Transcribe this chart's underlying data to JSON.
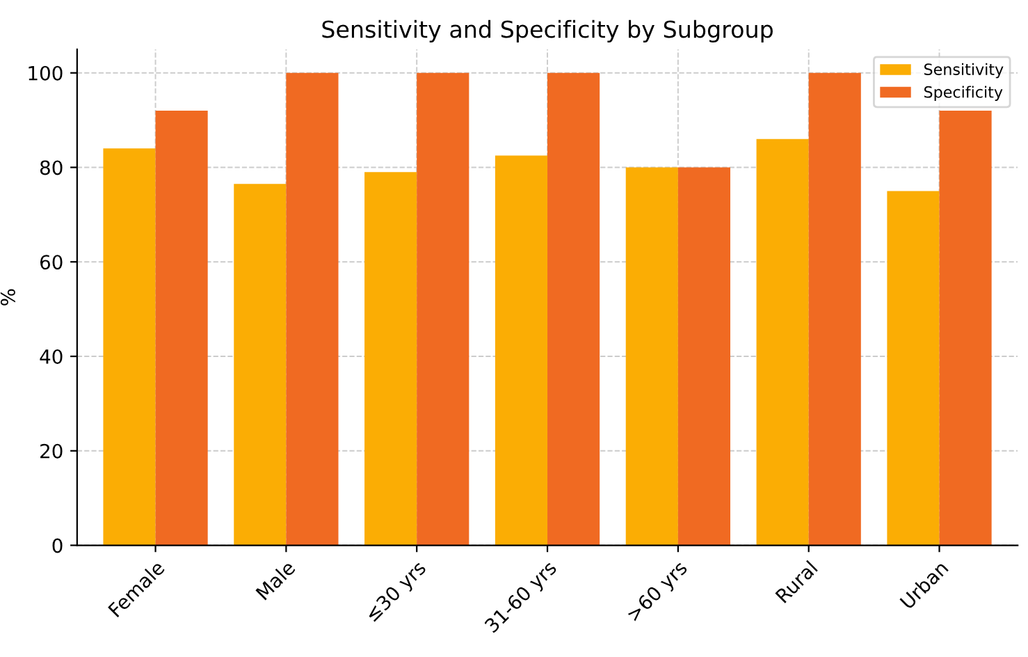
{
  "chart_data": {
    "type": "bar",
    "title": "Sensitivity and Specificity by Subgroup",
    "ylabel": "%",
    "categories": [
      "Female",
      "Male",
      "≤30 yrs",
      "31-60 yrs",
      ">60 yrs",
      "Rural",
      "Urban"
    ],
    "series": [
      {
        "name": "Sensitivity",
        "color": "#fbad04",
        "values": [
          84,
          76.5,
          79,
          82.5,
          80,
          86,
          75
        ]
      },
      {
        "name": "Specificity",
        "color": "#f06a22",
        "values": [
          92,
          100,
          100,
          100,
          80,
          100,
          92
        ]
      }
    ],
    "ylim": [
      0,
      105
    ],
    "yticks": [
      0,
      20,
      40,
      60,
      80,
      100
    ],
    "grid": true,
    "legend": "top right"
  }
}
